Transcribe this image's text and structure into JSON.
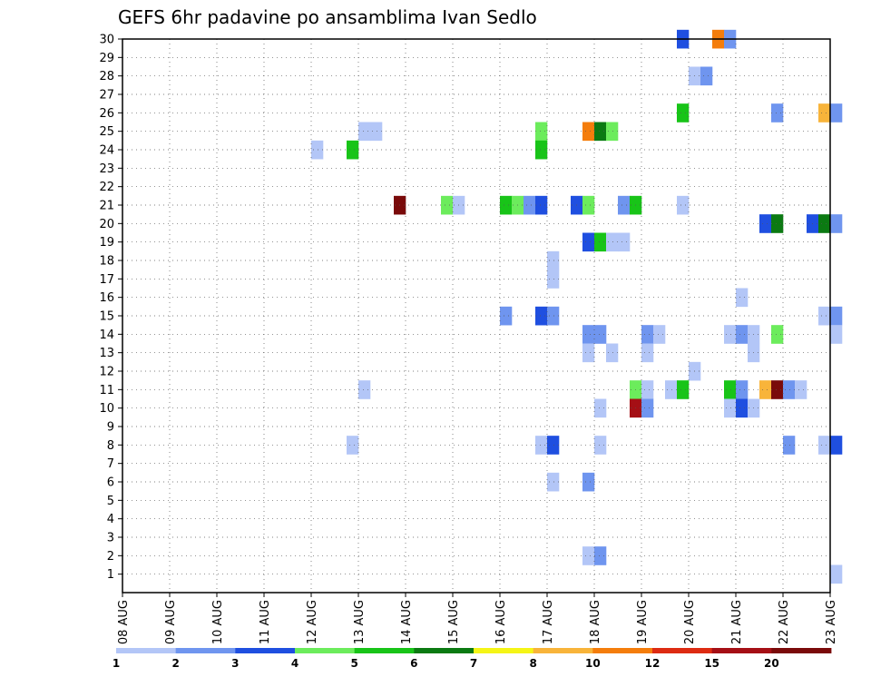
{
  "chart_data": {
    "type": "heatmap",
    "title": "GEFS 6hr padavine po ansamblima Ivan Sedlo",
    "xlabel": "",
    "ylabel": "",
    "x_ticks": [
      "08 AUG",
      "09 AUG",
      "10 AUG",
      "11 AUG",
      "12 AUG",
      "13 AUG",
      "14 AUG",
      "15 AUG",
      "16 AUG",
      "17 AUG",
      "18 AUG",
      "19 AUG",
      "20 AUG",
      "21 AUG",
      "22 AUG",
      "23 AUG"
    ],
    "x_range_days": [
      0,
      15
    ],
    "y_ticks": [
      1,
      2,
      3,
      4,
      5,
      6,
      7,
      8,
      9,
      10,
      11,
      12,
      13,
      14,
      15,
      16,
      17,
      18,
      19,
      20,
      21,
      22,
      23,
      24,
      25,
      26,
      27,
      28,
      29,
      30
    ],
    "y_range": [
      0,
      30
    ],
    "grid": true,
    "step_hours": 6,
    "colorbar": {
      "labels": [
        "1",
        "2",
        "3",
        "4",
        "5",
        "6",
        "7",
        "8",
        "10",
        "12",
        "15",
        "20"
      ],
      "colors": [
        "#b3c6f7",
        "#6f95ef",
        "#1f4fe0",
        "#6cec5c",
        "#18c418",
        "#0b7a12",
        "#f5f516",
        "#f8b43a",
        "#f47d0c",
        "#dd2b12",
        "#a50f15",
        "#7a0a0a"
      ]
    },
    "cells": [
      {
        "member": 30,
        "step": 47,
        "v": 3
      },
      {
        "member": 30,
        "step": 50,
        "v": 10
      },
      {
        "member": 30,
        "step": 51,
        "v": 2
      },
      {
        "member": 28,
        "step": 48,
        "v": 1
      },
      {
        "member": 28,
        "step": 49,
        "v": 2
      },
      {
        "member": 26,
        "step": 47,
        "v": 5
      },
      {
        "member": 26,
        "step": 55,
        "v": 2
      },
      {
        "member": 26,
        "step": 59,
        "v": 8
      },
      {
        "member": 26,
        "step": 60,
        "v": 2
      },
      {
        "member": 25,
        "step": 20,
        "v": 1
      },
      {
        "member": 25,
        "step": 21,
        "v": 1
      },
      {
        "member": 25,
        "step": 35,
        "v": 4
      },
      {
        "member": 25,
        "step": 39,
        "v": 10
      },
      {
        "member": 25,
        "step": 40,
        "v": 6
      },
      {
        "member": 25,
        "step": 41,
        "v": 4
      },
      {
        "member": 24,
        "step": 16,
        "v": 1
      },
      {
        "member": 24,
        "step": 19,
        "v": 5
      },
      {
        "member": 24,
        "step": 35,
        "v": 5
      },
      {
        "member": 21,
        "step": 23,
        "v": 20
      },
      {
        "member": 21,
        "step": 27,
        "v": 4
      },
      {
        "member": 21,
        "step": 28,
        "v": 1
      },
      {
        "member": 21,
        "step": 32,
        "v": 5
      },
      {
        "member": 21,
        "step": 33,
        "v": 4
      },
      {
        "member": 21,
        "step": 34,
        "v": 2
      },
      {
        "member": 21,
        "step": 35,
        "v": 3
      },
      {
        "member": 21,
        "step": 38,
        "v": 3
      },
      {
        "member": 21,
        "step": 39,
        "v": 4
      },
      {
        "member": 21,
        "step": 42,
        "v": 2
      },
      {
        "member": 21,
        "step": 43,
        "v": 5
      },
      {
        "member": 21,
        "step": 47,
        "v": 1
      },
      {
        "member": 20,
        "step": 54,
        "v": 3
      },
      {
        "member": 20,
        "step": 55,
        "v": 6
      },
      {
        "member": 20,
        "step": 58,
        "v": 3
      },
      {
        "member": 20,
        "step": 59,
        "v": 6
      },
      {
        "member": 20,
        "step": 60,
        "v": 2
      },
      {
        "member": 19,
        "step": 39,
        "v": 3
      },
      {
        "member": 19,
        "step": 40,
        "v": 5
      },
      {
        "member": 19,
        "step": 41,
        "v": 1
      },
      {
        "member": 19,
        "step": 42,
        "v": 1
      },
      {
        "member": 18,
        "step": 36,
        "v": 1
      },
      {
        "member": 17,
        "step": 36,
        "v": 1
      },
      {
        "member": 16,
        "step": 52,
        "v": 1
      },
      {
        "member": 15,
        "step": 32,
        "v": 2
      },
      {
        "member": 15,
        "step": 35,
        "v": 3
      },
      {
        "member": 15,
        "step": 36,
        "v": 2
      },
      {
        "member": 15,
        "step": 59,
        "v": 1
      },
      {
        "member": 15,
        "step": 60,
        "v": 2
      },
      {
        "member": 14,
        "step": 39,
        "v": 2
      },
      {
        "member": 14,
        "step": 40,
        "v": 2
      },
      {
        "member": 14,
        "step": 44,
        "v": 2
      },
      {
        "member": 14,
        "step": 45,
        "v": 1
      },
      {
        "member": 14,
        "step": 51,
        "v": 1
      },
      {
        "member": 14,
        "step": 52,
        "v": 2
      },
      {
        "member": 14,
        "step": 53,
        "v": 1
      },
      {
        "member": 14,
        "step": 55,
        "v": 4
      },
      {
        "member": 14,
        "step": 60,
        "v": 1
      },
      {
        "member": 13,
        "step": 39,
        "v": 1
      },
      {
        "member": 13,
        "step": 41,
        "v": 1
      },
      {
        "member": 13,
        "step": 44,
        "v": 1
      },
      {
        "member": 13,
        "step": 53,
        "v": 1
      },
      {
        "member": 12,
        "step": 48,
        "v": 1
      },
      {
        "member": 11,
        "step": 20,
        "v": 1
      },
      {
        "member": 11,
        "step": 43,
        "v": 4
      },
      {
        "member": 11,
        "step": 44,
        "v": 1
      },
      {
        "member": 11,
        "step": 46,
        "v": 1
      },
      {
        "member": 11,
        "step": 47,
        "v": 5
      },
      {
        "member": 11,
        "step": 51,
        "v": 5
      },
      {
        "member": 11,
        "step": 52,
        "v": 2
      },
      {
        "member": 11,
        "step": 54,
        "v": 8
      },
      {
        "member": 11,
        "step": 55,
        "v": 20
      },
      {
        "member": 11,
        "step": 56,
        "v": 2
      },
      {
        "member": 11,
        "step": 57,
        "v": 1
      },
      {
        "member": 10,
        "step": 40,
        "v": 1
      },
      {
        "member": 10,
        "step": 43,
        "v": 15
      },
      {
        "member": 10,
        "step": 44,
        "v": 2
      },
      {
        "member": 10,
        "step": 51,
        "v": 1
      },
      {
        "member": 10,
        "step": 52,
        "v": 3
      },
      {
        "member": 10,
        "step": 53,
        "v": 1
      },
      {
        "member": 8,
        "step": 19,
        "v": 1
      },
      {
        "member": 8,
        "step": 35,
        "v": 1
      },
      {
        "member": 8,
        "step": 36,
        "v": 3
      },
      {
        "member": 8,
        "step": 40,
        "v": 1
      },
      {
        "member": 8,
        "step": 56,
        "v": 2
      },
      {
        "member": 8,
        "step": 59,
        "v": 1
      },
      {
        "member": 8,
        "step": 60,
        "v": 3
      },
      {
        "member": 6,
        "step": 36,
        "v": 1
      },
      {
        "member": 6,
        "step": 39,
        "v": 2
      },
      {
        "member": 2,
        "step": 39,
        "v": 1
      },
      {
        "member": 2,
        "step": 40,
        "v": 2
      },
      {
        "member": 1,
        "step": 60,
        "v": 1
      }
    ]
  }
}
